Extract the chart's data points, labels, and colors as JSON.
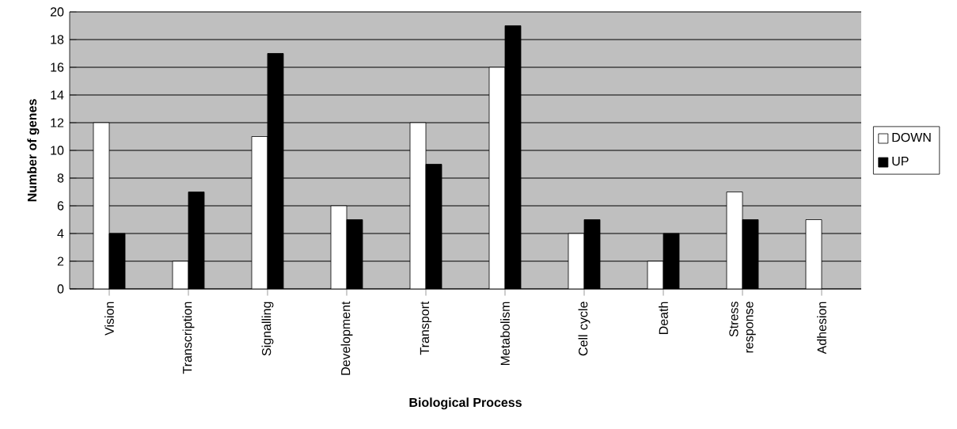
{
  "chart_data": {
    "type": "bar",
    "xlabel": "Biological Process",
    "ylabel": "Number of genes",
    "categories": [
      "Vision",
      "Transcription",
      "Signalling",
      "Development",
      "Transport",
      "Metabolism",
      "Cell cycle",
      "Death",
      "Stress response",
      "Adhesion"
    ],
    "series": [
      {
        "name": "DOWN",
        "color": "#ffffff",
        "values": [
          12,
          2,
          11,
          6,
          12,
          16,
          4,
          2,
          7,
          5
        ]
      },
      {
        "name": "UP",
        "color": "#000000",
        "values": [
          4,
          7,
          17,
          5,
          9,
          19,
          5,
          4,
          5,
          null
        ]
      }
    ],
    "ylim": [
      0,
      20
    ],
    "yticks": [
      0,
      2,
      4,
      6,
      8,
      10,
      12,
      14,
      16,
      18,
      20
    ],
    "grid": "y",
    "legend": "right"
  }
}
